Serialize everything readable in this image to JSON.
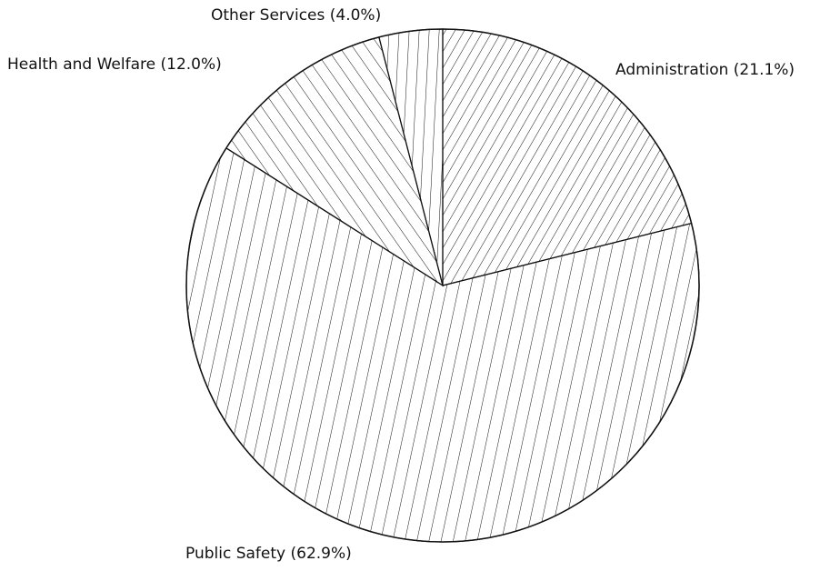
{
  "chart_data": {
    "type": "pie",
    "title": "",
    "start": "12 o'clock",
    "direction": "clockwise",
    "fill": "hatched lines, black on white",
    "slices": [
      {
        "name": "Administration",
        "value": 21.1,
        "label": "Administration (21.1%)",
        "hatch": "diagonal-forward"
      },
      {
        "name": "Public Safety",
        "value": 62.9,
        "label": "Public Safety (62.9%)",
        "hatch": "near-vertical"
      },
      {
        "name": "Health and Welfare",
        "value": 12.0,
        "label": "Health and Welfare (12.0%)",
        "hatch": "diagonal-backward"
      },
      {
        "name": "Other Services",
        "value": 4.0,
        "label": "Other Services (4.0%)",
        "hatch": "vertical"
      }
    ]
  },
  "colors": {
    "ink": "#111111",
    "background": "#ffffff"
  }
}
